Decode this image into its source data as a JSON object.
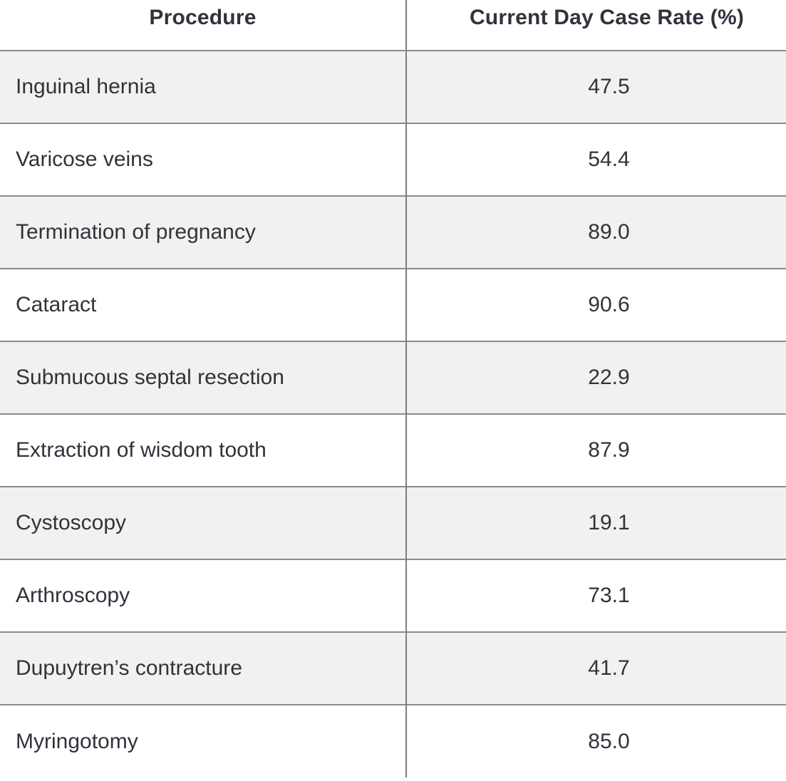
{
  "table": {
    "columns": [
      {
        "label": "Procedure"
      },
      {
        "label": "Current Day Case Rate (%)"
      }
    ],
    "rows": [
      {
        "procedure": "Inguinal hernia",
        "rate": "47.5"
      },
      {
        "procedure": "Varicose veins",
        "rate": "54.4"
      },
      {
        "procedure": "Termination of pregnancy",
        "rate": "89.0"
      },
      {
        "procedure": "Cataract",
        "rate": "90.6"
      },
      {
        "procedure": "Submucous septal resection",
        "rate": "22.9"
      },
      {
        "procedure": "Extraction of wisdom tooth",
        "rate": "87.9"
      },
      {
        "procedure": "Cystoscopy",
        "rate": "19.1"
      },
      {
        "procedure": "Arthroscopy",
        "rate": "73.1"
      },
      {
        "procedure": "Dupuytren’s contracture",
        "rate": "41.7"
      },
      {
        "procedure": "Myringotomy",
        "rate": "85.0"
      }
    ]
  },
  "colors": {
    "text": "#32323c",
    "stripe_row_background": "#f1f1f0",
    "row_border": "#8a8a8a",
    "column_divider": "#7d7d7d"
  },
  "chart_data": {
    "type": "table",
    "title": "",
    "columns": [
      "Procedure",
      "Current Day Case Rate (%)"
    ],
    "categories": [
      "Inguinal hernia",
      "Varicose veins",
      "Termination of pregnancy",
      "Cataract",
      "Submucous septal resection",
      "Extraction of wisdom tooth",
      "Cystoscopy",
      "Arthroscopy",
      "Dupuytren’s contracture",
      "Myringotomy"
    ],
    "values": [
      47.5,
      54.4,
      89.0,
      90.6,
      22.9,
      87.9,
      19.1,
      73.1,
      41.7,
      85.0
    ],
    "layout_hints": {
      "striped_rows": true,
      "stripe_pattern": "odd rows gray, even rows white",
      "header_bold": true,
      "value_column_alignment": "center",
      "procedure_column_alignment": "left"
    }
  }
}
